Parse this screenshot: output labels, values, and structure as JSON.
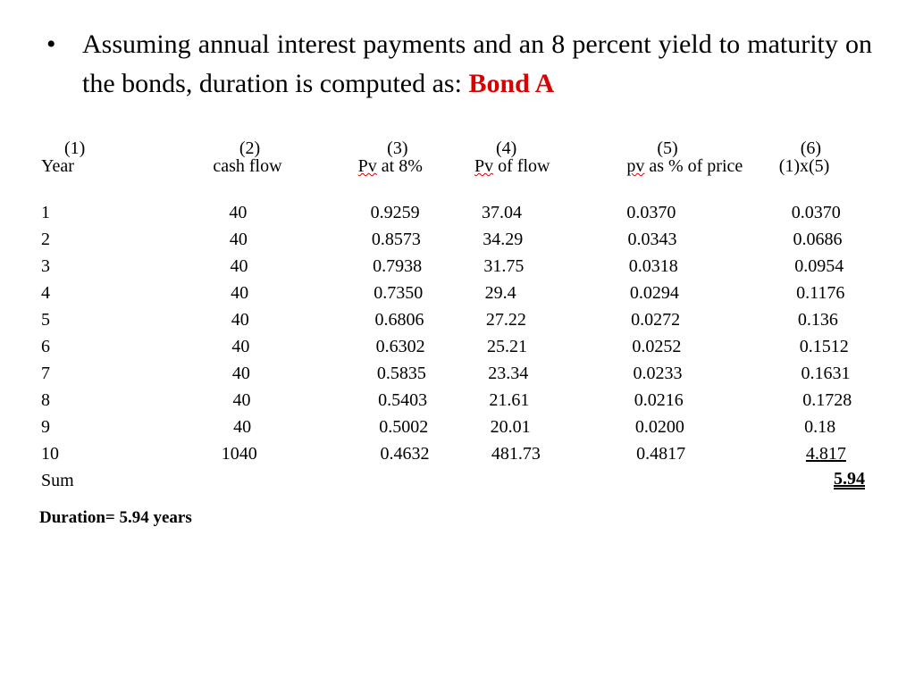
{
  "colors": {
    "text": "#000000",
    "accent": "#d90000",
    "background": "#ffffff",
    "spellcheck_underline": "#d90000"
  },
  "typography": {
    "body_family": "Times New Roman",
    "lead_fontsize_pt": 22,
    "table_fontsize_pt": 15,
    "duration_fontsize_pt": 14
  },
  "bullet": {
    "glyph": "•",
    "text_prefix": "Assuming annual interest payments and an 8 percent yield to maturity on the bonds, duration is computed as: ",
    "bond_label": "Bond A"
  },
  "table": {
    "type": "table",
    "header_numbers": [
      "(1)",
      "(2)",
      "(3)",
      "(4)",
      "(5)",
      "(6)"
    ],
    "header_labels": {
      "year": "Year",
      "cash_flow": "cash flow",
      "pv_factor_pre": "Pv",
      "pv_factor_post": " at 8%",
      "pv_flow_pre": "Pv",
      "pv_flow_post": " of flow",
      "pv_pct_pre": "pv",
      "pv_pct_post": " as % of price",
      "weighted": "(1)x(5)"
    },
    "columns": [
      "year",
      "cash_flow",
      "pv_factor",
      "pv_of_flow",
      "pv_pct_price",
      "weighted"
    ],
    "rows": [
      {
        "year": "1",
        "cash_flow": "40",
        "pv_factor": "0.9259",
        "pv_of_flow": "37.04",
        "pv_pct_price": "0.0370",
        "weighted": "0.0370"
      },
      {
        "year": "2",
        "cash_flow": "40",
        "pv_factor": "0.8573",
        "pv_of_flow": "34.29",
        "pv_pct_price": "0.0343",
        "weighted": "0.0686"
      },
      {
        "year": "3",
        "cash_flow": "40",
        "pv_factor": "0.7938",
        "pv_of_flow": "31.75",
        "pv_pct_price": "0.0318",
        "weighted": "0.0954"
      },
      {
        "year": "4",
        "cash_flow": "40",
        "pv_factor": "0.7350",
        "pv_of_flow": "29.4",
        "pv_pct_price": "0.0294",
        "weighted": "0.1176"
      },
      {
        "year": "5",
        "cash_flow": "40",
        "pv_factor": "0.6806",
        "pv_of_flow": "27.22",
        "pv_pct_price": "0.0272",
        "weighted": "0.136"
      },
      {
        "year": "6",
        "cash_flow": "40",
        "pv_factor": "0.6302",
        "pv_of_flow": "25.21",
        "pv_pct_price": "0.0252",
        "weighted": "0.1512"
      },
      {
        "year": "7",
        "cash_flow": "40",
        "pv_factor": "0.5835",
        "pv_of_flow": "23.34",
        "pv_pct_price": "0.0233",
        "weighted": "0.1631"
      },
      {
        "year": "8",
        "cash_flow": "40",
        "pv_factor": "0.5403",
        "pv_of_flow": "21.61",
        "pv_pct_price": "0.0216",
        "weighted": "0.1728"
      },
      {
        "year": "9",
        "cash_flow": "40",
        "pv_factor": "0.5002",
        "pv_of_flow": "20.01",
        "pv_pct_price": "0.0200",
        "weighted": "0.18"
      },
      {
        "year": "10",
        "cash_flow": "1040",
        "pv_factor": "0.4632",
        "pv_of_flow": "481.73",
        "pv_pct_price": "0.4817",
        "weighted": "4.817"
      }
    ],
    "sum_row": {
      "label": "Sum",
      "weighted_total": "5.94"
    },
    "last_row_underline": true
  },
  "duration_line": "Duration= 5.94 years"
}
